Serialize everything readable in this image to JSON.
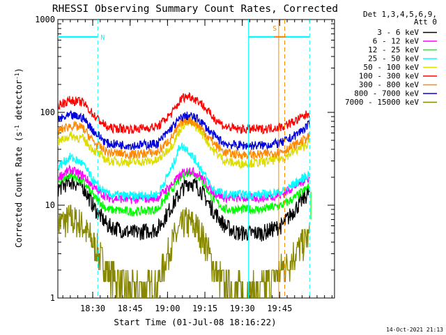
{
  "chart_data": {
    "type": "line",
    "title": "RHESSI Observing Summary Count Rates, Corrected",
    "xlabel": "Start Time (01-Jul-08 18:16:22)",
    "ylabel_parts": [
      "Corrected Count Rate (s",
      "-1",
      " detector",
      "-1",
      ")"
    ],
    "y_scale": "log",
    "xlim_min": [
      0,
      111
    ],
    "ylim": [
      1,
      1000
    ],
    "x_ticks": [
      {
        "min": 14,
        "label": "18:30"
      },
      {
        "min": 29,
        "label": "18:45"
      },
      {
        "min": 44,
        "label": "19:00"
      },
      {
        "min": 59,
        "label": "19:15"
      },
      {
        "min": 74,
        "label": "19:30"
      },
      {
        "min": 89,
        "label": "19:45"
      }
    ],
    "y_ticks": [
      {
        "value": 1,
        "label": "1"
      },
      {
        "value": 10,
        "label": "10"
      },
      {
        "value": 100,
        "label": "100"
      },
      {
        "value": 1000,
        "label": "1000"
      }
    ],
    "legend_header": [
      "Det 1,3,4,5,6,9,",
      "Att 0"
    ],
    "series": [
      {
        "name": "3 - 6 keV",
        "color": "#000000",
        "values": [
          [
            0,
            15
          ],
          [
            5,
            18
          ],
          [
            10,
            16
          ],
          [
            15,
            9
          ],
          [
            20,
            6
          ],
          [
            30,
            5
          ],
          [
            40,
            5.5
          ],
          [
            46,
            10
          ],
          [
            50,
            15
          ],
          [
            53,
            18
          ],
          [
            57,
            15
          ],
          [
            62,
            9
          ],
          [
            67,
            6
          ],
          [
            72,
            5
          ],
          [
            82,
            5
          ],
          [
            90,
            6
          ],
          [
            95,
            9
          ],
          [
            101,
            14
          ]
        ]
      },
      {
        "name": "6 - 12 keV",
        "color": "#ff00ff",
        "values": [
          [
            0,
            20
          ],
          [
            5,
            24
          ],
          [
            10,
            21
          ],
          [
            15,
            15
          ],
          [
            20,
            12
          ],
          [
            30,
            11.5
          ],
          [
            40,
            12
          ],
          [
            46,
            17
          ],
          [
            50,
            22
          ],
          [
            53,
            24
          ],
          [
            57,
            21
          ],
          [
            62,
            14
          ],
          [
            67,
            12
          ],
          [
            72,
            12
          ],
          [
            82,
            12
          ],
          [
            90,
            13
          ],
          [
            95,
            16
          ],
          [
            101,
            20
          ]
        ]
      },
      {
        "name": "12 - 25 keV",
        "color": "#00ff00",
        "values": [
          [
            0,
            18
          ],
          [
            5,
            21
          ],
          [
            10,
            18
          ],
          [
            15,
            12
          ],
          [
            20,
            9
          ],
          [
            30,
            8.5
          ],
          [
            40,
            9
          ],
          [
            46,
            15
          ],
          [
            50,
            21
          ],
          [
            53,
            23
          ],
          [
            57,
            20
          ],
          [
            62,
            12
          ],
          [
            67,
            9
          ],
          [
            72,
            9
          ],
          [
            82,
            9
          ],
          [
            90,
            10
          ],
          [
            95,
            12
          ],
          [
            101,
            16
          ]
        ]
      },
      {
        "name": "25 - 50 keV",
        "color": "#00ffff",
        "values": [
          [
            0,
            26
          ],
          [
            5,
            33
          ],
          [
            10,
            28
          ],
          [
            15,
            17
          ],
          [
            20,
            13
          ],
          [
            30,
            12.5
          ],
          [
            40,
            13
          ],
          [
            46,
            26
          ],
          [
            49,
            44
          ],
          [
            52,
            40
          ],
          [
            57,
            26
          ],
          [
            62,
            15
          ],
          [
            67,
            13
          ],
          [
            72,
            13
          ],
          [
            82,
            13
          ],
          [
            90,
            14
          ],
          [
            95,
            17
          ],
          [
            101,
            22
          ]
        ]
      },
      {
        "name": "50 - 100 keV",
        "color": "#dddd00",
        "values": [
          [
            0,
            48
          ],
          [
            5,
            56
          ],
          [
            10,
            52
          ],
          [
            15,
            38
          ],
          [
            20,
            30
          ],
          [
            30,
            29
          ],
          [
            40,
            30
          ],
          [
            46,
            45
          ],
          [
            50,
            73
          ],
          [
            53,
            78
          ],
          [
            57,
            65
          ],
          [
            62,
            40
          ],
          [
            67,
            30
          ],
          [
            72,
            28
          ],
          [
            82,
            29
          ],
          [
            90,
            32
          ],
          [
            95,
            38
          ],
          [
            101,
            47
          ]
        ]
      },
      {
        "name": "100 - 300 keV",
        "color": "#ff0000",
        "values": [
          [
            0,
            120
          ],
          [
            5,
            135
          ],
          [
            10,
            128
          ],
          [
            15,
            90
          ],
          [
            20,
            68
          ],
          [
            30,
            66
          ],
          [
            40,
            70
          ],
          [
            46,
            100
          ],
          [
            50,
            145
          ],
          [
            53,
            150
          ],
          [
            57,
            130
          ],
          [
            62,
            90
          ],
          [
            67,
            70
          ],
          [
            72,
            66
          ],
          [
            82,
            66
          ],
          [
            90,
            70
          ],
          [
            95,
            80
          ],
          [
            101,
            98
          ]
        ]
      },
      {
        "name": "300 - 800 keV",
        "color": "#ff8800",
        "values": [
          [
            0,
            63
          ],
          [
            5,
            72
          ],
          [
            10,
            68
          ],
          [
            15,
            46
          ],
          [
            20,
            37
          ],
          [
            30,
            35
          ],
          [
            40,
            37
          ],
          [
            46,
            55
          ],
          [
            50,
            80
          ],
          [
            53,
            83
          ],
          [
            57,
            70
          ],
          [
            62,
            48
          ],
          [
            67,
            37
          ],
          [
            72,
            35
          ],
          [
            82,
            35
          ],
          [
            90,
            38
          ],
          [
            95,
            44
          ],
          [
            101,
            55
          ]
        ]
      },
      {
        "name": "800 - 7000 keV",
        "color": "#0000dd",
        "values": [
          [
            0,
            83
          ],
          [
            5,
            92
          ],
          [
            10,
            88
          ],
          [
            15,
            60
          ],
          [
            20,
            46
          ],
          [
            30,
            44
          ],
          [
            40,
            46
          ],
          [
            46,
            70
          ],
          [
            50,
            90
          ],
          [
            53,
            92
          ],
          [
            57,
            82
          ],
          [
            62,
            58
          ],
          [
            67,
            46
          ],
          [
            72,
            44
          ],
          [
            82,
            44
          ],
          [
            90,
            47
          ],
          [
            95,
            56
          ],
          [
            101,
            74
          ]
        ]
      },
      {
        "name": "7000 - 15000 keV",
        "color": "#888800",
        "values": [
          [
            0,
            6.5
          ],
          [
            5,
            7
          ],
          [
            10,
            6
          ],
          [
            15,
            3.5
          ],
          [
            20,
            2
          ],
          [
            25,
            1.4
          ],
          [
            30,
            1.2
          ],
          [
            40,
            1.4
          ],
          [
            44,
            3
          ],
          [
            48,
            5
          ],
          [
            51,
            6.5
          ],
          [
            55,
            6
          ],
          [
            59,
            4
          ],
          [
            63,
            2
          ],
          [
            67,
            1.4
          ],
          [
            72,
            1.2
          ],
          [
            80,
            1.2
          ],
          [
            88,
            1.8
          ],
          [
            93,
            2.5
          ],
          [
            97,
            3.5
          ],
          [
            101,
            4.5
          ]
        ]
      }
    ],
    "cyan_level_value": 650,
    "cyan_segments": [
      [
        0,
        16
      ],
      [
        76.5,
        101
      ]
    ],
    "cyan_vlines": [
      16,
      76.5,
      101
    ],
    "cyan_label": "N",
    "cyan_label_x": 18,
    "orange_vline": 88.6,
    "orange_dash_vline": 91,
    "orange_label": "S",
    "orange_label_x": 87,
    "orange_level_value": 650,
    "orange_segment": [
      86.7,
      91.5
    ],
    "green_vline": 101.5,
    "timestamp": "14-Oct-2021 21:13"
  }
}
